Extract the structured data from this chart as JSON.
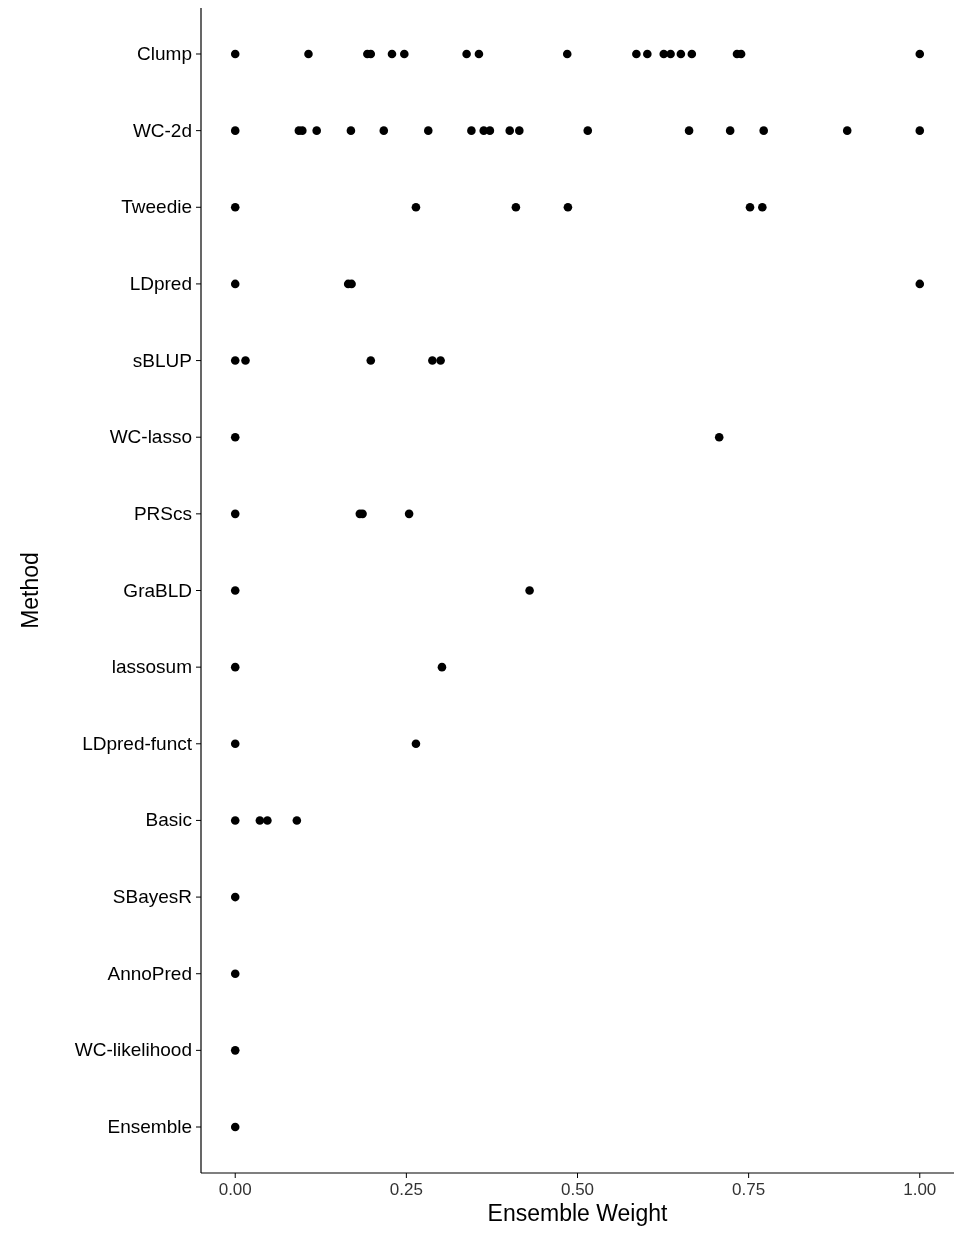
{
  "chart_data": {
    "type": "scatter",
    "orientation": "horizontal",
    "xlabel": "Ensemble Weight",
    "ylabel": "Method",
    "categories": [
      "Clump",
      "WC-2d",
      "Tweedie",
      "LDpred",
      "sBLUP",
      "WC-lasso",
      "PRScs",
      "GraBLD",
      "lassosum",
      "LDpred-funct",
      "Basic",
      "SBayesR",
      "AnnoPred",
      "WC-likelihood",
      "Ensemble"
    ],
    "xlim": [
      -0.05,
      1.05
    ],
    "xticks": [
      {
        "value": 0,
        "label": "0.00"
      },
      {
        "value": 0.25,
        "label": "0.25"
      },
      {
        "value": 0.5,
        "label": "0.50"
      },
      {
        "value": 0.75,
        "label": "0.75"
      },
      {
        "value": 1,
        "label": "1.00"
      }
    ],
    "grid": false,
    "marker": "circle",
    "series": [
      {
        "color": "#000000",
        "x": [
          "Clump",
          "Clump",
          "Clump",
          "Clump",
          "Clump",
          "Clump",
          "Clump",
          "Clump",
          "Clump",
          "Clump",
          "Clump",
          "Clump",
          "Clump",
          "Clump",
          "Clump",
          "Clump",
          "Clump",
          "Clump",
          "WC-2d",
          "WC-2d",
          "WC-2d",
          "WC-2d",
          "WC-2d",
          "WC-2d",
          "WC-2d",
          "WC-2d",
          "WC-2d",
          "WC-2d",
          "WC-2d",
          "WC-2d",
          "WC-2d",
          "WC-2d",
          "WC-2d",
          "WC-2d",
          "WC-2d",
          "WC-2d",
          "Tweedie",
          "Tweedie",
          "Tweedie",
          "Tweedie",
          "Tweedie",
          "Tweedie",
          "LDpred",
          "LDpred",
          "LDpred",
          "LDpred",
          "sBLUP",
          "sBLUP",
          "sBLUP",
          "sBLUP",
          "sBLUP",
          "WC-lasso",
          "WC-lasso",
          "PRScs",
          "PRScs",
          "PRScs",
          "PRScs",
          "GraBLD",
          "GraBLD",
          "lassosum",
          "lassosum",
          "LDpred-funct",
          "LDpred-funct",
          "Basic",
          "Basic",
          "Basic",
          "Basic",
          "SBayesR",
          "AnnoPred",
          "WC-likelihood",
          "Ensemble"
        ],
        "values": [
          0,
          0.107,
          0.193,
          0.198,
          0.229,
          0.247,
          0.338,
          0.356,
          0.485,
          0.586,
          0.602,
          0.626,
          0.636,
          0.651,
          0.667,
          0.733,
          0.739,
          1,
          0,
          0.093,
          0.098,
          0.119,
          0.169,
          0.217,
          0.282,
          0.345,
          0.363,
          0.372,
          0.401,
          0.415,
          0.515,
          0.663,
          0.723,
          0.772,
          0.894,
          1,
          0,
          0.264,
          0.41,
          0.486,
          0.752,
          0.77,
          0,
          0.165,
          0.17,
          1,
          0,
          0.015,
          0.198,
          0.288,
          0.3,
          0,
          0.707,
          0,
          0.182,
          0.186,
          0.254,
          0,
          0.43,
          0,
          0.302,
          0,
          0.264,
          0,
          0.036,
          0.047,
          0.09,
          0,
          0,
          0,
          0
        ]
      }
    ]
  }
}
